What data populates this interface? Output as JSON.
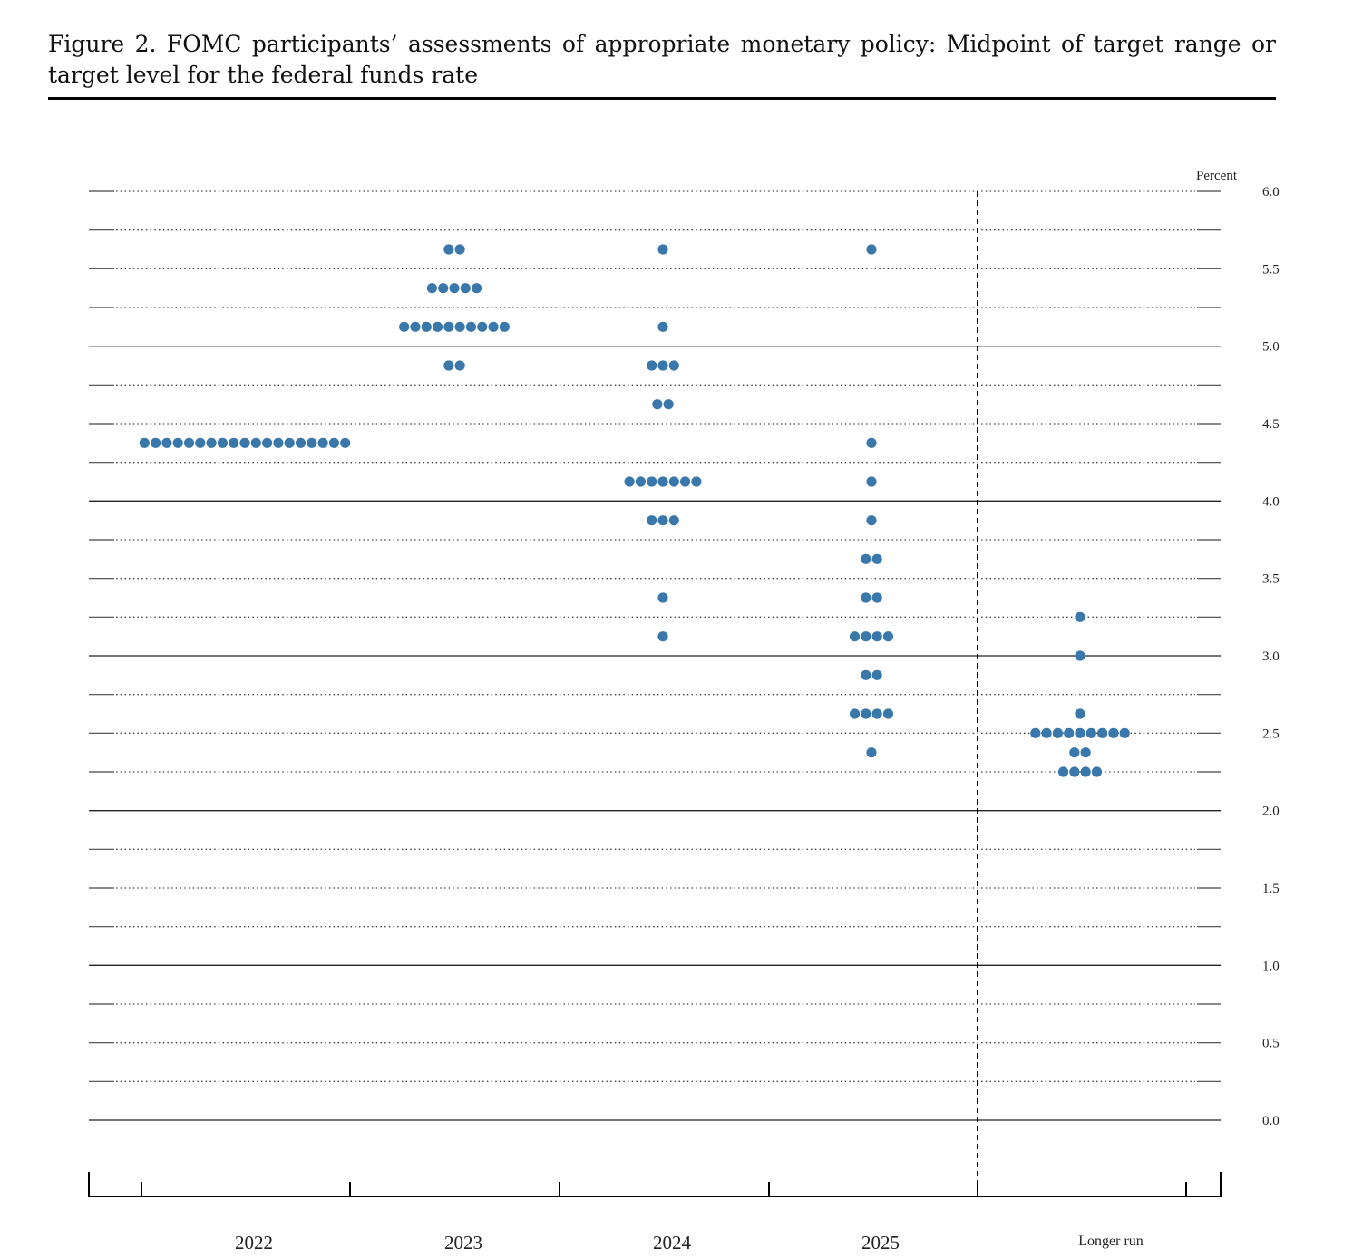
{
  "figure": {
    "title": "Figure 2.  FOMC participants’ assessments of appropriate monetary policy:  Midpoint of target range or target level for the federal funds rate"
  },
  "chart_data": {
    "type": "scatter",
    "title": "Figure 2.  FOMC participants’ assessments of appropriate monetary policy:  Midpoint of target range or target level for the federal funds rate",
    "ylabel": "Percent",
    "xlabel": "",
    "ylim": [
      0,
      6
    ],
    "y_ticks": [
      "0.0",
      "0.5",
      "1.0",
      "1.5",
      "2.0",
      "2.5",
      "3.0",
      "3.5",
      "4.0",
      "4.5",
      "5.0",
      "5.5",
      "6.0"
    ],
    "grid": "dotted every 0.25 percentage point; solid at each whole percent",
    "categories": [
      "2022",
      "2023",
      "2024",
      "2025",
      "Longer run"
    ],
    "dot_color": "#3a77aa",
    "series": [
      {
        "category": "2022",
        "points": [
          {
            "y": 4.375,
            "count": 19
          }
        ]
      },
      {
        "category": "2023",
        "points": [
          {
            "y": 5.625,
            "count": 2
          },
          {
            "y": 5.375,
            "count": 5
          },
          {
            "y": 5.125,
            "count": 10
          },
          {
            "y": 4.875,
            "count": 2
          }
        ]
      },
      {
        "category": "2024",
        "points": [
          {
            "y": 5.625,
            "count": 1
          },
          {
            "y": 5.125,
            "count": 1
          },
          {
            "y": 4.875,
            "count": 3
          },
          {
            "y": 4.625,
            "count": 2
          },
          {
            "y": 4.125,
            "count": 7
          },
          {
            "y": 3.875,
            "count": 3
          },
          {
            "y": 3.375,
            "count": 1
          },
          {
            "y": 3.125,
            "count": 1
          }
        ]
      },
      {
        "category": "2025",
        "points": [
          {
            "y": 5.625,
            "count": 1
          },
          {
            "y": 4.375,
            "count": 1
          },
          {
            "y": 4.125,
            "count": 1
          },
          {
            "y": 3.875,
            "count": 1
          },
          {
            "y": 3.625,
            "count": 2
          },
          {
            "y": 3.375,
            "count": 2
          },
          {
            "y": 3.125,
            "count": 4
          },
          {
            "y": 2.875,
            "count": 2
          },
          {
            "y": 2.625,
            "count": 4
          },
          {
            "y": 2.375,
            "count": 1
          }
        ]
      },
      {
        "category": "Longer run",
        "points": [
          {
            "y": 3.25,
            "count": 1
          },
          {
            "y": 3.0,
            "count": 1
          },
          {
            "y": 2.625,
            "count": 1
          },
          {
            "y": 2.5,
            "count": 9
          },
          {
            "y": 2.375,
            "count": 2
          },
          {
            "y": 2.25,
            "count": 4
          }
        ]
      }
    ]
  }
}
